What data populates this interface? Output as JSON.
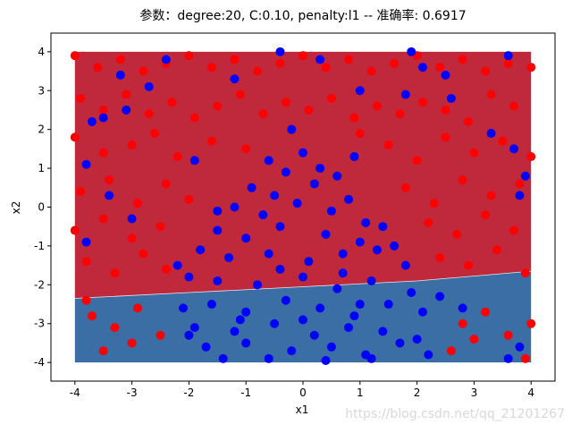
{
  "chart_data": {
    "type": "scatter",
    "title": "参数：degree:20, C:0.10, penalty:l1 -- 准确率: 0.6917",
    "x_label": "x1",
    "y_label": "x2",
    "watermark": "https://blog.csdn.net/qq_21201267",
    "xlim": [
      -4.42,
      4.42
    ],
    "ylim": [
      -4.48,
      4.48
    ],
    "xticks": [
      -4,
      -3,
      -2,
      -1,
      0,
      1,
      2,
      3,
      4
    ],
    "yticks": [
      -4,
      -3,
      -2,
      -1,
      0,
      1,
      2,
      3,
      4
    ],
    "region_xlim": [
      -4,
      4
    ],
    "region_ylim": [
      -4,
      4
    ],
    "region_colors": [
      "#c0283c",
      "#3a6ea5"
    ],
    "decision_boundary": {
      "x": [
        -4,
        -2,
        0,
        2,
        4
      ],
      "y": [
        -2.35,
        -2.2,
        -2.05,
        -1.9,
        -1.65
      ]
    },
    "series": [
      {
        "color": "#ff0000",
        "x": [
          -4.0,
          -3.6,
          -3.2,
          -2.8,
          -2.4,
          -2.0,
          -1.6,
          -1.2,
          -0.8,
          -0.4,
          0.0,
          0.4,
          0.8,
          1.2,
          1.6,
          2.0,
          2.4,
          2.8,
          3.2,
          3.6,
          4.0,
          -3.9,
          -3.5,
          -3.1,
          -2.7,
          -2.3,
          -1.9,
          -1.5,
          -1.1,
          -0.7,
          -0.3,
          0.1,
          0.5,
          0.9,
          1.3,
          1.7,
          2.1,
          2.5,
          2.9,
          3.3,
          3.7,
          -4.0,
          -3.5,
          -3.0,
          -2.6,
          -2.2,
          -1.6,
          -1.0,
          1.0,
          1.5,
          2.0,
          2.5,
          3.0,
          3.5,
          4.0,
          -3.9,
          -3.4,
          -2.9,
          -2.4,
          -2.0,
          1.8,
          2.3,
          2.8,
          3.3,
          3.8,
          -4.0,
          -3.5,
          -3.0,
          -2.5,
          2.2,
          2.7,
          3.2,
          3.7,
          -3.8,
          -3.3,
          -2.8,
          -2.4,
          2.4,
          2.9,
          3.4,
          3.9,
          -3.7,
          -3.3,
          -2.9,
          -2.5,
          -3.5,
          -3.0,
          2.8,
          3.2,
          3.6,
          4.0,
          2.6,
          3.0,
          3.9,
          -3.8
        ],
        "values": [
          3.9,
          3.6,
          3.8,
          3.5,
          3.7,
          3.9,
          3.6,
          3.8,
          3.5,
          3.7,
          3.9,
          3.6,
          3.8,
          3.5,
          3.7,
          3.9,
          3.6,
          3.8,
          3.5,
          3.7,
          3.6,
          2.8,
          2.5,
          2.9,
          2.4,
          2.7,
          2.3,
          2.6,
          2.9,
          2.4,
          2.7,
          2.5,
          2.8,
          2.3,
          2.6,
          2.4,
          2.7,
          2.5,
          2.2,
          2.9,
          2.6,
          1.8,
          1.4,
          1.6,
          1.9,
          1.3,
          1.7,
          1.5,
          1.9,
          1.6,
          1.2,
          1.8,
          1.4,
          1.7,
          1.3,
          0.4,
          0.7,
          0.1,
          0.6,
          0.2,
          0.5,
          0.1,
          0.7,
          0.3,
          0.6,
          -0.6,
          -0.3,
          -0.8,
          -0.5,
          -0.4,
          -0.7,
          -0.2,
          -0.6,
          -1.4,
          -1.7,
          -1.2,
          -1.6,
          -1.3,
          -1.5,
          -1.1,
          -1.7,
          -2.8,
          -3.1,
          -2.6,
          -3.3,
          -3.7,
          -3.5,
          -3.0,
          -2.7,
          -3.3,
          -3.0,
          -3.7,
          -3.4,
          -3.9,
          -2.4
        ]
      },
      {
        "color": "#0000ff",
        "x": [
          -0.6,
          -0.3,
          0.0,
          0.3,
          0.6,
          -0.9,
          -0.5,
          0.2,
          0.8,
          -1.2,
          -0.7,
          -0.1,
          0.5,
          1.1,
          -1.5,
          -1.0,
          -0.4,
          0.4,
          1.0,
          1.4,
          -1.8,
          -1.3,
          -0.6,
          0.1,
          0.7,
          1.3,
          1.8,
          -2.0,
          -1.5,
          -0.8,
          0.0,
          0.6,
          1.2,
          1.9,
          -2.1,
          -1.6,
          -1.0,
          -0.3,
          0.3,
          0.9,
          1.5,
          2.1,
          -1.9,
          -1.2,
          -0.5,
          0.2,
          0.8,
          1.4,
          2.0,
          -1.7,
          -1.0,
          -0.2,
          0.5,
          1.1,
          1.7,
          -1.4,
          -0.6,
          0.4,
          1.2,
          2.2,
          -2.0,
          -1.1,
          0.0,
          1.0,
          2.4,
          2.8,
          -1.5,
          -0.4,
          0.7,
          1.6,
          -3.8,
          -3.7,
          -3.5,
          -3.2,
          -2.4,
          -2.7,
          -1.9,
          -1.2,
          -0.4,
          0.3,
          1.9,
          2.1,
          1.0,
          1.8,
          2.5,
          3.6,
          3.3,
          3.7,
          3.9,
          3.8,
          3.8,
          3.6,
          -3.4,
          -3.0,
          -3.8,
          -2.2,
          -0.2,
          0.9,
          2.6,
          -3.1
        ],
        "values": [
          1.2,
          0.9,
          1.4,
          1.0,
          0.8,
          0.5,
          0.3,
          0.6,
          0.2,
          0.0,
          -0.2,
          0.1,
          -0.1,
          -0.4,
          -0.6,
          -0.8,
          -0.5,
          -0.7,
          -0.9,
          -0.5,
          -1.1,
          -1.3,
          -1.2,
          -1.4,
          -1.2,
          -1.1,
          -1.5,
          -1.8,
          -1.9,
          -2.0,
          -1.8,
          -2.1,
          -1.9,
          -2.2,
          -2.6,
          -2.5,
          -2.7,
          -2.4,
          -2.6,
          -2.8,
          -2.5,
          -2.7,
          -3.1,
          -3.2,
          -3.0,
          -3.3,
          -3.1,
          -3.2,
          -3.4,
          -3.6,
          -3.5,
          -3.7,
          -3.6,
          -3.8,
          -3.5,
          -3.9,
          -3.9,
          -3.95,
          -3.9,
          -3.8,
          -3.3,
          -2.9,
          -2.9,
          -2.5,
          -2.3,
          -2.6,
          -0.1,
          -1.6,
          -1.7,
          -1.0,
          1.1,
          2.2,
          2.3,
          3.4,
          3.8,
          3.1,
          1.2,
          3.3,
          4.0,
          3.8,
          4.0,
          3.6,
          3.0,
          2.9,
          3.4,
          3.9,
          1.9,
          1.5,
          0.8,
          0.3,
          -3.6,
          -3.9,
          0.3,
          -0.3,
          -0.9,
          -1.5,
          2.0,
          1.3,
          2.8,
          2.5
        ]
      }
    ]
  }
}
